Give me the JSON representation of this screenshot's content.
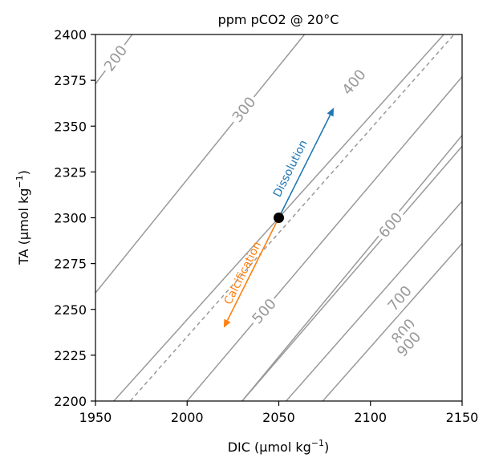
{
  "chart_data": {
    "type": "line",
    "title": "ppm pCO2 @ 20°C",
    "xlabel": "DIC (µmol kg",
    "xlabel_sup": "−1",
    "xlabel_end": ")",
    "ylabel": "TA (µmol kg",
    "ylabel_sup": "−1",
    "ylabel_end": ")",
    "xlim": [
      1950,
      2150
    ],
    "ylim": [
      2200,
      2400
    ],
    "xticks": [
      "1950",
      "2000",
      "2050",
      "2100",
      "2150"
    ],
    "yticks": [
      "2200",
      "2225",
      "2250",
      "2275",
      "2300",
      "2325",
      "2350",
      "2375",
      "2400"
    ],
    "grid": false,
    "contour_color": "#999999",
    "contours": [
      {
        "label": "200",
        "x": [
          1950,
          1970
        ],
        "y": [
          2373,
          2400
        ],
        "label_at": [
          1961,
          2387
        ]
      },
      {
        "label": "300",
        "x": [
          1950,
          2064
        ],
        "y": [
          2259,
          2400
        ],
        "label_at": [
          2031,
          2359
        ]
      },
      {
        "label": "400",
        "x": [
          2030,
          2150
        ],
        "y": [
          2200,
          2345
        ],
        "label_at": [
          2091,
          2374
        ]
      },
      {
        "label": "500",
        "x": [
          1960,
          2140
        ],
        "y": [
          2200,
          2400
        ],
        "label_at": [
          2042,
          2249
        ]
      },
      {
        "label": "600",
        "x": [
          2000,
          2150
        ],
        "y": [
          2200,
          2377
        ],
        "label_at": [
          2111,
          2296
        ]
      },
      {
        "label": "700",
        "x": [
          2030,
          2150
        ],
        "y": [
          2200,
          2339
        ],
        "label_at": [
          2116,
          2256
        ]
      },
      {
        "label": "800",
        "x": [
          2054,
          2150
        ],
        "y": [
          2200,
          2309
        ],
        "label_at": [
          2118,
          2238
        ]
      },
      {
        "label": "900",
        "x": [
          2074,
          2150
        ],
        "y": [
          2200,
          2286
        ],
        "label_at": [
          2121,
          2231
        ]
      }
    ],
    "dashed_line": {
      "x": [
        1969,
        2150
      ],
      "y": [
        2200,
        2405
      ],
      "color": "#999999"
    },
    "point": {
      "x": 2050,
      "y": 2300,
      "color": "#000000"
    },
    "arrows": [
      {
        "name": "Dissolution",
        "from": [
          2050,
          2300
        ],
        "to": [
          2080,
          2360
        ],
        "color": "#1f77b4",
        "label_at": [
          2060,
          2325
        ]
      },
      {
        "name": "Calcification",
        "from": [
          2050,
          2300
        ],
        "to": [
          2020,
          2240
        ],
        "color": "#ff7f0e",
        "label_at": [
          2034,
          2268
        ]
      }
    ]
  }
}
